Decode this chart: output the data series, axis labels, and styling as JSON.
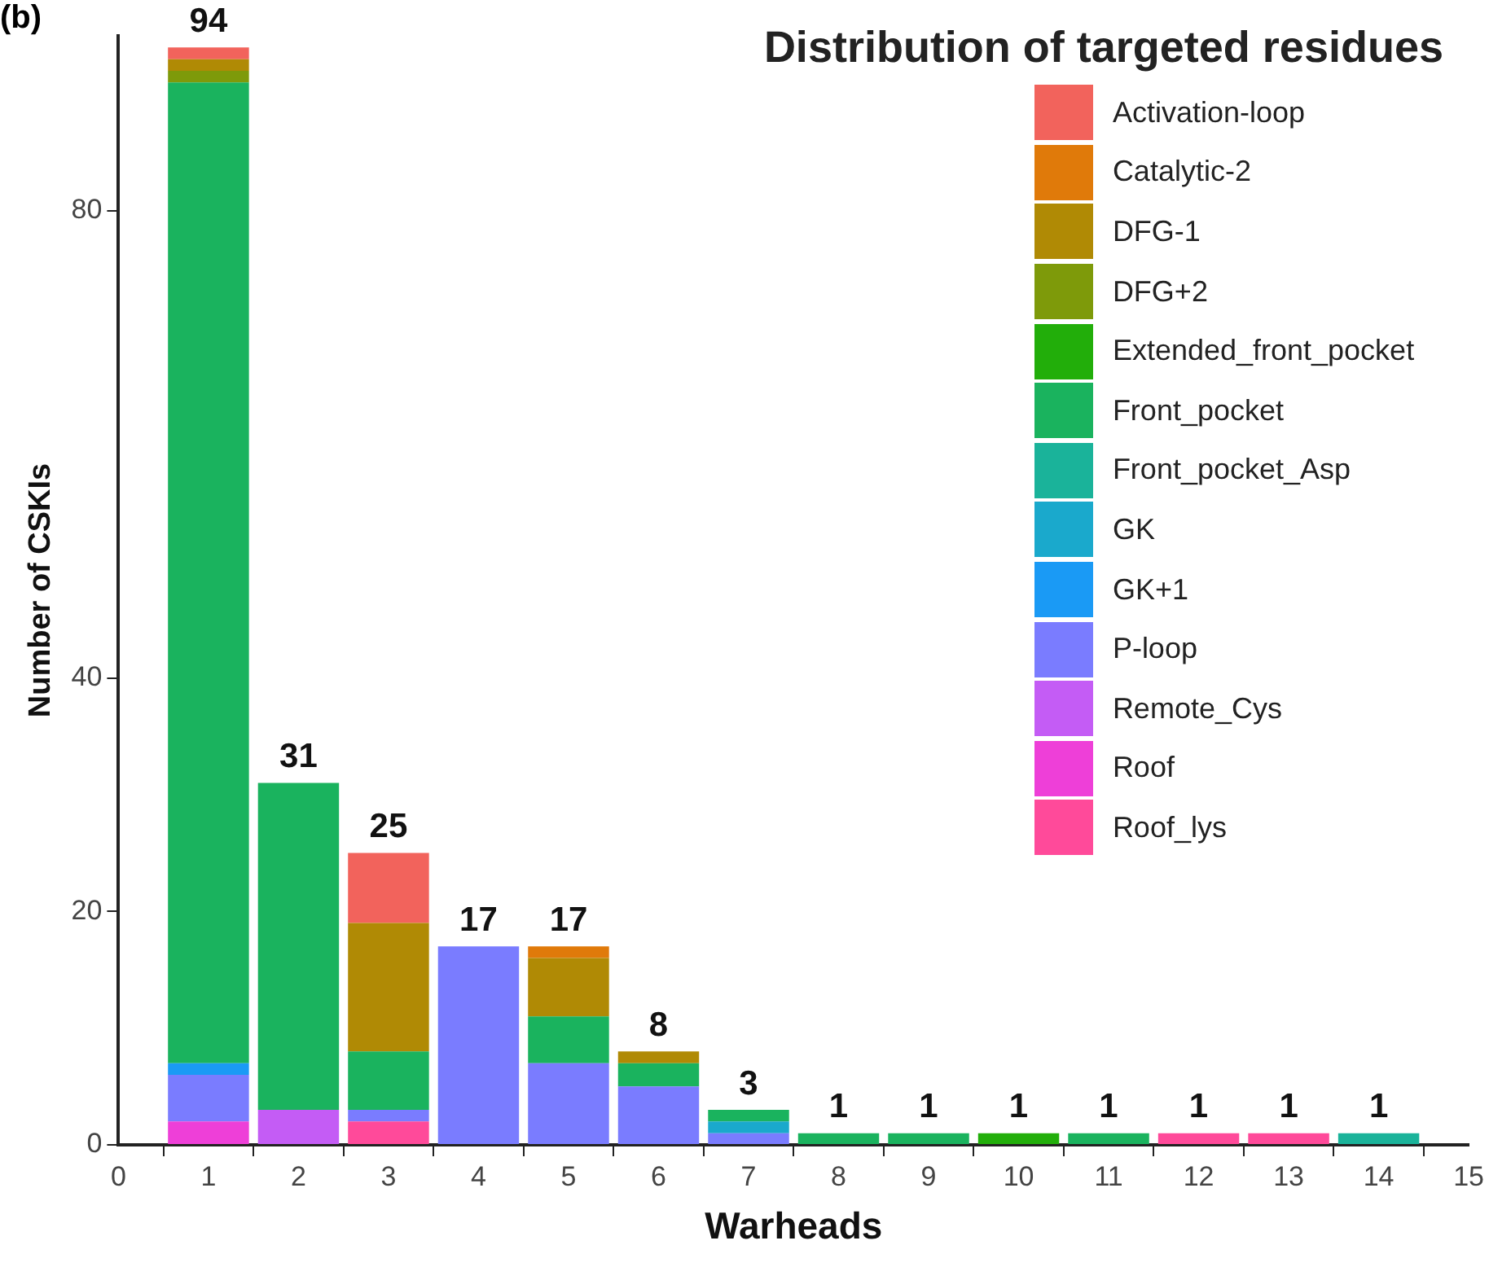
{
  "chart_data": {
    "type": "bar",
    "stacked": true,
    "xlabel": "Warheads",
    "ylabel": "Number of CSKIs",
    "legend_title": "Distribution of targeted residues",
    "legend": "top right",
    "grid": false,
    "annotations": [
      "(b)"
    ],
    "x": [
      1,
      2,
      3,
      4,
      5,
      6,
      7,
      8,
      9,
      10,
      11,
      12,
      13,
      14
    ],
    "xlim": [
      0,
      15
    ],
    "xticks": [
      0,
      1,
      2,
      3,
      4,
      5,
      6,
      7,
      8,
      9,
      10,
      11,
      12,
      13,
      14,
      15
    ],
    "ylim": [
      0,
      95
    ],
    "yticks": [
      0,
      20,
      40,
      80
    ],
    "totals": [
      "94",
      "31",
      "25",
      "17",
      "17",
      "8",
      "3",
      "1",
      "1",
      "1",
      "1",
      "1",
      "1",
      "1"
    ],
    "series": [
      {
        "name": "Roof_lys",
        "color": "#ff4a9a",
        "values": [
          null,
          null,
          2,
          null,
          null,
          null,
          null,
          null,
          null,
          null,
          null,
          1,
          1,
          null
        ]
      },
      {
        "name": "Roof",
        "color": "#ee3fd8",
        "values": [
          2,
          null,
          null,
          null,
          null,
          null,
          null,
          null,
          null,
          null,
          null,
          null,
          null,
          null
        ]
      },
      {
        "name": "Remote_Cys",
        "color": "#c45cf5",
        "values": [
          null,
          3,
          null,
          null,
          null,
          null,
          null,
          null,
          null,
          null,
          null,
          null,
          null,
          null
        ]
      },
      {
        "name": "P-loop",
        "color": "#7a7cff",
        "values": [
          4,
          null,
          1,
          17,
          7,
          5,
          1,
          null,
          null,
          null,
          null,
          null,
          null,
          null
        ]
      },
      {
        "name": "GK+1",
        "color": "#1a9af5",
        "values": [
          1,
          null,
          null,
          null,
          null,
          null,
          null,
          null,
          null,
          null,
          null,
          null,
          null,
          null
        ]
      },
      {
        "name": "GK",
        "color": "#1aa9cc",
        "values": [
          null,
          null,
          null,
          null,
          null,
          null,
          1,
          null,
          null,
          null,
          null,
          null,
          null,
          null
        ]
      },
      {
        "name": "Front_pocket_Asp",
        "color": "#1ab39a",
        "values": [
          null,
          null,
          null,
          null,
          null,
          null,
          null,
          null,
          null,
          null,
          null,
          null,
          null,
          1
        ]
      },
      {
        "name": "Front_pocket",
        "color": "#1ab35e",
        "values": [
          84,
          28,
          5,
          null,
          4,
          2,
          1,
          1,
          1,
          null,
          1,
          null,
          null,
          null
        ]
      },
      {
        "name": "Extended_front_pocket",
        "color": "#22ae0a",
        "values": [
          null,
          null,
          null,
          null,
          null,
          null,
          null,
          null,
          null,
          1,
          null,
          null,
          null,
          null
        ]
      },
      {
        "name": "DFG+2",
        "color": "#7e9a0a",
        "values": [
          1,
          null,
          null,
          null,
          null,
          null,
          null,
          null,
          null,
          null,
          null,
          null,
          null,
          null
        ]
      },
      {
        "name": "DFG-1",
        "color": "#b08a05",
        "values": [
          1,
          null,
          11,
          null,
          5,
          1,
          null,
          null,
          null,
          null,
          null,
          null,
          null,
          null
        ]
      },
      {
        "name": "Catalytic-2",
        "color": "#e07a0a",
        "values": [
          null,
          null,
          null,
          null,
          1,
          null,
          null,
          null,
          null,
          null,
          null,
          null,
          null,
          null
        ]
      },
      {
        "name": "Activation-loop",
        "color": "#f2635c",
        "values": [
          1,
          null,
          6,
          null,
          null,
          null,
          null,
          null,
          null,
          null,
          null,
          null,
          null,
          null
        ]
      }
    ]
  }
}
